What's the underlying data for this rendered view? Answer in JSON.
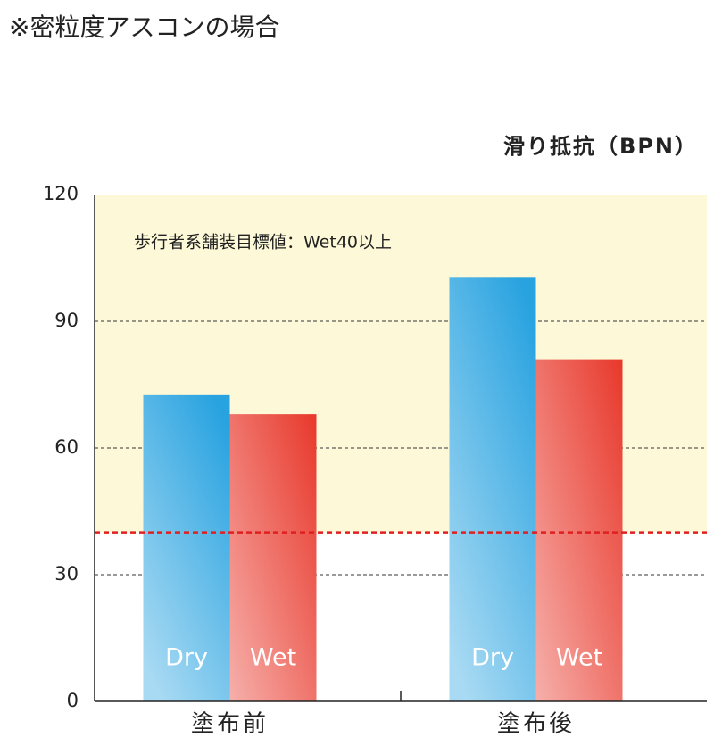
{
  "chart_data": {
    "type": "bar",
    "title": "※密粒度アスコンの場合",
    "y_label": "滑り抵抗（BPN）",
    "annotation": "歩行者系舗装目標値：Wet40以上",
    "target": 40,
    "target_color": "#e02020",
    "zone_color": "#fdf9d8",
    "categories": [
      "塗布前",
      "塗布後"
    ],
    "series": [
      {
        "name": "Dry",
        "color": "#29a3e0",
        "values": [
          72.5,
          100.5
        ]
      },
      {
        "name": "Wet",
        "color": "#e8382b",
        "values": [
          68,
          81
        ]
      }
    ],
    "ylim": [
      0,
      120
    ],
    "yticks": [
      0,
      30,
      60,
      90,
      120
    ],
    "grid": true
  }
}
